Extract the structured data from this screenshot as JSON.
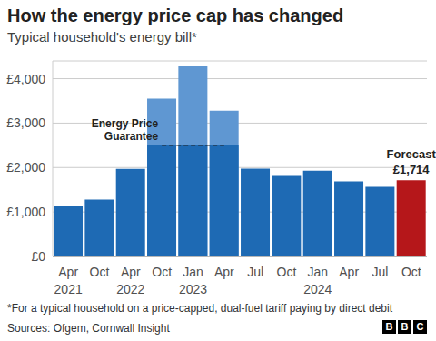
{
  "chart_data": {
    "type": "bar",
    "title": "How the energy price cap has changed",
    "subtitle": "Typical household's energy bill*",
    "categories": [
      "Apr 2021",
      "Oct",
      "Apr 2022",
      "Oct",
      "Jan 2023",
      "Apr",
      "Jul",
      "Oct",
      "Jan 2024",
      "Apr",
      "Jul",
      "Oct"
    ],
    "values": [
      1138,
      1277,
      1971,
      3549,
      4279,
      3280,
      1976,
      1834,
      1928,
      1690,
      1568,
      1714
    ],
    "colors": [
      "#1e6ab4",
      "#1e6ab4",
      "#1e6ab4",
      "#5f97d2",
      "#5f97d2",
      "#5f97d2",
      "#1e6ab4",
      "#1e6ab4",
      "#1e6ab4",
      "#1e6ab4",
      "#1e6ab4",
      "#b5171a"
    ],
    "data_labels": true,
    "value_labels": [
      null,
      null,
      null,
      null,
      null,
      null,
      null,
      null,
      null,
      null,
      null,
      "£1,714"
    ],
    "annotations": [
      {
        "text": "Forecast",
        "position": 11
      }
    ],
    "energy_price_guarantee": {
      "label": "Energy Price Guarantee",
      "values": [
        null,
        null,
        null,
        2500,
        2500,
        2500,
        null,
        null,
        null,
        null,
        null,
        null
      ],
      "color": "#1e6ab4"
    },
    "ylim": [
      0,
      4400
    ],
    "yticks": [
      {
        "value": 0,
        "label": "£0"
      },
      {
        "value": 1000,
        "label": "£1,000"
      },
      {
        "value": 2000,
        "label": "£2,000"
      },
      {
        "value": 3000,
        "label": "£3,000"
      },
      {
        "value": 4000,
        "label": "£4,000"
      }
    ],
    "grid": true,
    "footnote": "*For a typical household on a price-capped, dual-fuel tariff paying by direct debit",
    "source": "Sources: Ofgem, Cornwall Insight",
    "logo": "BBC"
  }
}
